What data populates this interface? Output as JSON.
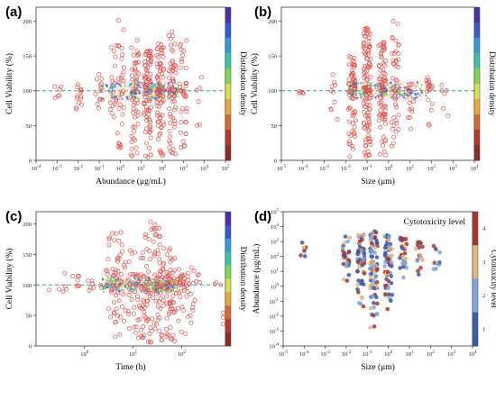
{
  "chart_data": [
    {
      "panel": "(a)",
      "type": "scatter",
      "xlabel": "Abundance (μg/mL)",
      "ylabel": "Cell Viability (%)",
      "x_scale": "log",
      "xlim": [
        0.0001,
        100000
      ],
      "ylim": [
        0,
        220
      ],
      "x_ticks": [
        "10^-4",
        "10^-3",
        "10^-2",
        "10^-1",
        "10^0",
        "10^1",
        "10^2",
        "10^3",
        "10^4",
        "10^5"
      ],
      "y_ticks": [
        "0",
        "50",
        "100",
        "150",
        "200"
      ],
      "reference_line": 100,
      "colorbar_title": "Distribution density",
      "clusters": [
        {
          "x": 0.001,
          "y_min": 85,
          "y_max": 110,
          "n": 6
        },
        {
          "x": 0.01,
          "y_min": 70,
          "y_max": 140,
          "n": 14
        },
        {
          "x": 0.1,
          "y_min": 65,
          "y_max": 130,
          "n": 14
        },
        {
          "x": 0.5,
          "y_min": 55,
          "y_max": 165,
          "n": 20
        },
        {
          "x": 1,
          "y_min": 10,
          "y_max": 205,
          "n": 30
        },
        {
          "x": 5,
          "y_min": 5,
          "y_max": 175,
          "n": 60
        },
        {
          "x": 20,
          "y_min": 2,
          "y_max": 160,
          "n": 90
        },
        {
          "x": 80,
          "y_min": 2,
          "y_max": 170,
          "n": 90
        },
        {
          "x": 300,
          "y_min": 5,
          "y_max": 190,
          "n": 70
        },
        {
          "x": 1000,
          "y_min": 10,
          "y_max": 185,
          "n": 40
        },
        {
          "x": 5000,
          "y_min": 50,
          "y_max": 120,
          "n": 6
        }
      ]
    },
    {
      "panel": "(b)",
      "type": "scatter",
      "xlabel": "Size (μm)",
      "ylabel": "Cell Viability (%)",
      "x_scale": "log",
      "xlim": [
        1e-05,
        10000
      ],
      "ylim": [
        0,
        220
      ],
      "x_ticks": [
        "10^-5",
        "10^-4",
        "10^-3",
        "10^-2",
        "10^-1",
        "10^0",
        "10^1",
        "10^2",
        "10^3",
        "10^4"
      ],
      "y_ticks": [
        "0",
        "50",
        "100",
        "150",
        "200"
      ],
      "reference_line": 100,
      "colorbar_title": "Distribution density",
      "clusters": [
        {
          "x": 0.0001,
          "y_min": 30,
          "y_max": 95,
          "n": 5
        },
        {
          "x": 0.003,
          "y_min": 20,
          "y_max": 130,
          "n": 10
        },
        {
          "x": 0.02,
          "y_min": 5,
          "y_max": 150,
          "n": 80
        },
        {
          "x": 0.1,
          "y_min": 2,
          "y_max": 190,
          "n": 120
        },
        {
          "x": 0.5,
          "y_min": 5,
          "y_max": 170,
          "n": 90
        },
        {
          "x": 2,
          "y_min": 15,
          "y_max": 200,
          "n": 50
        },
        {
          "x": 10,
          "y_min": 40,
          "y_max": 120,
          "n": 20
        },
        {
          "x": 80,
          "y_min": 50,
          "y_max": 120,
          "n": 20
        },
        {
          "x": 400,
          "y_min": 60,
          "y_max": 110,
          "n": 6
        }
      ]
    },
    {
      "panel": "(c)",
      "type": "scatter",
      "xlabel": "Time (h)",
      "ylabel": "Cell Viability (%)",
      "x_scale": "log",
      "xlim": [
        0.1,
        800
      ],
      "ylim": [
        0,
        220
      ],
      "x_ticks": [
        "10^0",
        "10^1",
        "10^2"
      ],
      "y_ticks": [
        "0",
        "50",
        "100",
        "150",
        "200"
      ],
      "reference_line": 100,
      "colorbar_title": "Distribution density",
      "clusters": [
        {
          "x": 0.25,
          "y_min": 75,
          "y_max": 90,
          "n": 3
        },
        {
          "x": 0.5,
          "y_min": 90,
          "y_max": 120,
          "n": 6
        },
        {
          "x": 1,
          "y_min": 90,
          "y_max": 115,
          "n": 8
        },
        {
          "x": 2,
          "y_min": 95,
          "y_max": 105,
          "n": 3
        },
        {
          "x": 3,
          "y_min": 50,
          "y_max": 130,
          "n": 12
        },
        {
          "x": 4,
          "y_min": 30,
          "y_max": 190,
          "n": 40
        },
        {
          "x": 6,
          "y_min": 5,
          "y_max": 160,
          "n": 30
        },
        {
          "x": 12,
          "y_min": 10,
          "y_max": 160,
          "n": 40
        },
        {
          "x": 16,
          "y_min": 5,
          "y_max": 140,
          "n": 20
        },
        {
          "x": 24,
          "y_min": 2,
          "y_max": 205,
          "n": 80
        },
        {
          "x": 48,
          "y_min": 2,
          "y_max": 160,
          "n": 70
        },
        {
          "x": 72,
          "y_min": 5,
          "y_max": 130,
          "n": 50
        },
        {
          "x": 120,
          "y_min": 20,
          "y_max": 120,
          "n": 20
        },
        {
          "x": 168,
          "y_min": 20,
          "y_max": 130,
          "n": 15
        },
        {
          "x": 500,
          "y_min": 30,
          "y_max": 110,
          "n": 6
        }
      ]
    },
    {
      "panel": "(d)",
      "type": "scatter",
      "xlabel": "Size (μm)",
      "ylabel": "Abundance (μg/mL)",
      "x_scale": "log",
      "y_scale": "log",
      "xlim": [
        1e-05,
        10000
      ],
      "ylim": [
        0.0001,
        100000
      ],
      "x_ticks": [
        "10^-5",
        "10^-4",
        "10^-3",
        "10^-2",
        "10^-1",
        "10^0",
        "10^1",
        "10^2",
        "10^3",
        "10^4"
      ],
      "y_ticks": [
        "10^-4",
        "10^-3",
        "10^-2",
        "10^-1",
        "10^0",
        "10^1",
        "10^2",
        "10^3",
        "10^4",
        "10^5"
      ],
      "legend_text": "Cytotoxicity level",
      "colorbar_title": "Cytotoxicity level",
      "colorbar_levels": [
        "1",
        "2",
        "3",
        "4"
      ],
      "clusters": [
        {
          "x": 0.0001,
          "y_min": 1,
          "y_max": 1000,
          "n": 8
        },
        {
          "x": 0.01,
          "y_min": 1,
          "y_max": 3000,
          "n": 25
        },
        {
          "x": 0.05,
          "y_min": 0.01,
          "y_max": 5000,
          "n": 60
        },
        {
          "x": 0.2,
          "y_min": 0.001,
          "y_max": 5000,
          "n": 80
        },
        {
          "x": 1,
          "y_min": 0.01,
          "y_max": 3000,
          "n": 60
        },
        {
          "x": 5,
          "y_min": 1,
          "y_max": 2000,
          "n": 30
        },
        {
          "x": 30,
          "y_min": 1,
          "y_max": 1000,
          "n": 20
        },
        {
          "x": 200,
          "y_min": 1,
          "y_max": 800,
          "n": 10
        }
      ]
    }
  ],
  "colors": {
    "marker_stroke": "#d9534f",
    "reference_line": "#2aa198",
    "density_colormap": [
      "#4b2fa8",
      "#3a57d4",
      "#2f9be0",
      "#38c6a8",
      "#7fd84f",
      "#d8e34a",
      "#e8a93a",
      "#d76a2f",
      "#b8382a",
      "#8f2b24"
    ],
    "cytotoxicity_colormap": [
      "#3b5aa8",
      "#7ea6d6",
      "#e0b58a",
      "#a8362e"
    ]
  }
}
